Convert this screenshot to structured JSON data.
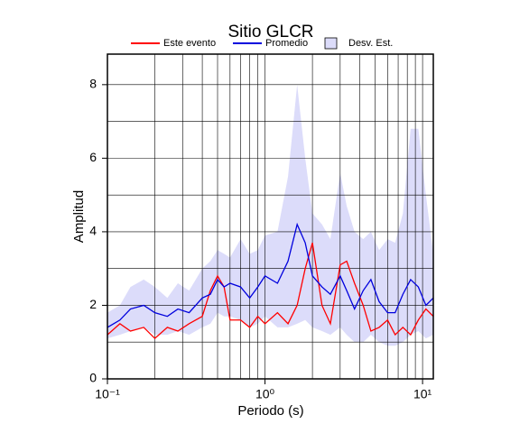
{
  "chart_data": {
    "type": "line",
    "title": "Sitio GLCR",
    "xlabel": "Periodo (s)",
    "ylabel": "Amplitud",
    "xscale": "log",
    "grid": true,
    "xlim": [
      0.1,
      11.7
    ],
    "ylim": [
      0,
      8.83
    ],
    "xticks": [
      {
        "value": 0.1,
        "label": "10⁻¹"
      },
      {
        "value": 1,
        "label": "10⁰"
      },
      {
        "value": 10,
        "label": "10¹"
      }
    ],
    "xminorticks": [
      0.2,
      0.3,
      0.4,
      0.5,
      0.6,
      0.7,
      0.8,
      0.9,
      2,
      3,
      4,
      5,
      6,
      7,
      8,
      9
    ],
    "yticks": [
      0,
      2,
      4,
      6,
      8
    ],
    "yminorticks": [
      1,
      3,
      5,
      7
    ],
    "x": [
      0.1,
      0.12,
      0.14,
      0.17,
      0.2,
      0.24,
      0.28,
      0.33,
      0.4,
      0.45,
      0.5,
      0.55,
      0.6,
      0.7,
      0.8,
      0.9,
      1.0,
      1.2,
      1.4,
      1.6,
      1.8,
      2.0,
      2.3,
      2.6,
      3.0,
      3.3,
      3.7,
      4.2,
      4.7,
      5.3,
      6,
      6.7,
      7.5,
      8.4,
      9.4,
      10.5,
      11.7
    ],
    "series": [
      {
        "name": "Este evento",
        "color": "#ff0000",
        "values": [
          1.2,
          1.5,
          1.3,
          1.4,
          1.1,
          1.4,
          1.3,
          1.5,
          1.7,
          2.4,
          2.8,
          2.5,
          1.6,
          1.6,
          1.4,
          1.7,
          1.5,
          1.8,
          1.5,
          2.0,
          3.0,
          3.7,
          2.0,
          1.5,
          3.1,
          3.2,
          2.6,
          2.0,
          1.3,
          1.4,
          1.6,
          1.2,
          1.4,
          1.2,
          1.6,
          1.9,
          1.7
        ]
      },
      {
        "name": "Promedio",
        "color": "#0000dd",
        "values": [
          1.4,
          1.6,
          1.9,
          2.0,
          1.8,
          1.7,
          1.9,
          1.8,
          2.2,
          2.3,
          2.7,
          2.5,
          2.6,
          2.5,
          2.2,
          2.5,
          2.8,
          2.6,
          3.2,
          4.2,
          3.7,
          2.8,
          2.5,
          2.3,
          2.8,
          2.4,
          1.9,
          2.4,
          2.7,
          2.1,
          1.8,
          1.8,
          2.3,
          2.7,
          2.5,
          2.0,
          2.2
        ]
      },
      {
        "name": "Desv. Est.",
        "color": "#dcdcfa",
        "upper": [
          1.8,
          2.0,
          2.5,
          2.7,
          2.5,
          2.2,
          2.6,
          2.4,
          3.0,
          3.2,
          3.5,
          3.4,
          3.3,
          3.8,
          3.4,
          3.5,
          3.9,
          4.0,
          5.5,
          8.0,
          6.0,
          4.5,
          4.2,
          3.8,
          5.6,
          4.7,
          4.0,
          3.8,
          4.0,
          3.5,
          3.8,
          3.7,
          4.5,
          6.8,
          6.8,
          5.0,
          3.4
        ],
        "lower": [
          1.1,
          1.2,
          1.3,
          1.4,
          1.2,
          1.2,
          1.3,
          1.2,
          1.4,
          1.5,
          1.8,
          1.7,
          1.7,
          1.6,
          1.4,
          1.5,
          1.7,
          1.4,
          1.4,
          1.5,
          1.6,
          1.4,
          1.3,
          1.2,
          1.4,
          1.2,
          1.0,
          1.0,
          1.2,
          1.0,
          0.9,
          0.9,
          1.0,
          1.2,
          1.3,
          1.1,
          1.2
        ]
      }
    ]
  }
}
